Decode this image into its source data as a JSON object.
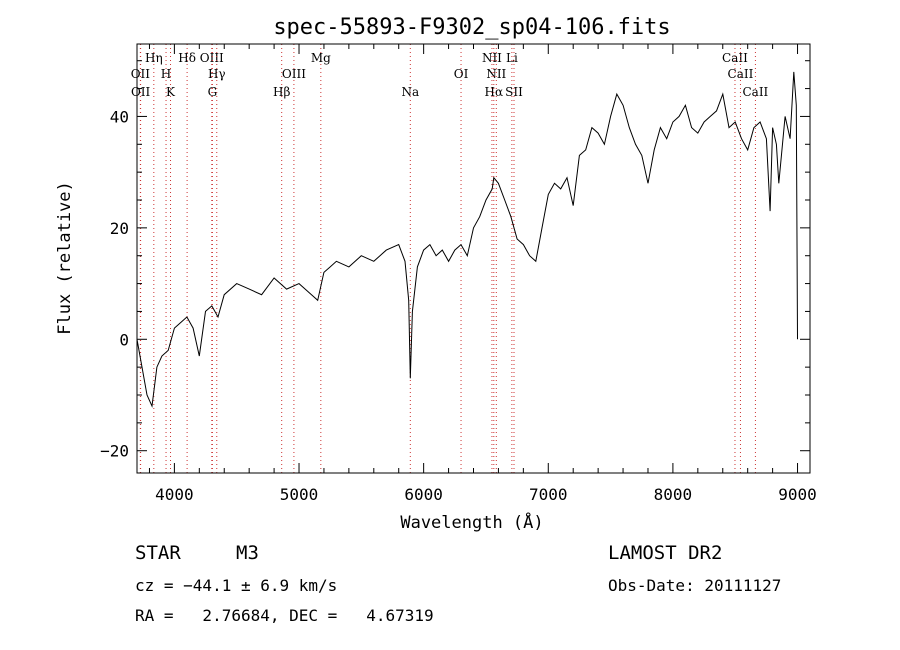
{
  "chart_data": {
    "type": "line",
    "title": "spec-55893-F9302_sp04-106.fits",
    "xlabel": "Wavelength (Å)",
    "ylabel": "Flux (relative)",
    "xlim": [
      3700,
      9100
    ],
    "ylim": [
      -24,
      53
    ],
    "xticks": [
      4000,
      5000,
      6000,
      7000,
      8000,
      9000
    ],
    "yticks": [
      -20,
      0,
      20,
      40
    ],
    "grid": false,
    "line_color": "#000000",
    "marker_color": "#cc3333",
    "series": [
      {
        "x": [
          3700,
          3740,
          3780,
          3820,
          3860,
          3900,
          3950,
          4000,
          4050,
          4100,
          4150,
          4200,
          4250,
          4300,
          4350,
          4400,
          4500,
          4600,
          4700,
          4800,
          4900,
          5000,
          5100,
          5150,
          5200,
          5250,
          5300,
          5400,
          5500,
          5600,
          5700,
          5800,
          5850,
          5880,
          5893,
          5910,
          5950,
          6000,
          6050,
          6100,
          6150,
          6200,
          6250,
          6300,
          6350,
          6400,
          6450,
          6500,
          6550,
          6563,
          6600,
          6650,
          6700,
          6750,
          6800,
          6850,
          6900,
          6950,
          7000,
          7050,
          7100,
          7150,
          7200,
          7250,
          7300,
          7350,
          7400,
          7450,
          7500,
          7550,
          7600,
          7650,
          7700,
          7750,
          7800,
          7850,
          7900,
          7950,
          8000,
          8050,
          8100,
          8150,
          8200,
          8250,
          8300,
          8350,
          8400,
          8450,
          8500,
          8550,
          8600,
          8650,
          8700,
          8750,
          8780,
          8800,
          8830,
          8850,
          8900,
          8940,
          8970,
          8990,
          9000
        ],
        "y": [
          0,
          -5,
          -10,
          -12,
          -5,
          -3,
          -2,
          2,
          3,
          4,
          2,
          -3,
          5,
          6,
          4,
          8,
          10,
          9,
          8,
          11,
          9,
          10,
          8,
          7,
          12,
          13,
          14,
          13,
          15,
          14,
          16,
          17,
          14,
          7,
          -7,
          5,
          13,
          16,
          17,
          15,
          16,
          14,
          16,
          17,
          15,
          20,
          22,
          25,
          27,
          29,
          28,
          25,
          22,
          18,
          17,
          15,
          14,
          20,
          26,
          28,
          27,
          29,
          24,
          33,
          34,
          38,
          37,
          35,
          40,
          44,
          42,
          38,
          35,
          33,
          28,
          34,
          38,
          36,
          39,
          40,
          42,
          38,
          37,
          39,
          40,
          41,
          44,
          38,
          39,
          36,
          34,
          38,
          39,
          36,
          23,
          38,
          35,
          28,
          40,
          36,
          48,
          42,
          0
        ]
      }
    ],
    "line_markers": [
      {
        "label": "OII",
        "x": 3727,
        "row": 2
      },
      {
        "label": "OII",
        "x": 3729,
        "row": 3
      },
      {
        "label": "Hη",
        "x": 3835,
        "row": 1
      },
      {
        "label": "H",
        "x": 3933,
        "row": 2
      },
      {
        "label": "K",
        "x": 3969,
        "row": 3
      },
      {
        "label": "Hδ",
        "x": 4102,
        "row": 1
      },
      {
        "label": "OIII",
        "x": 4300,
        "row": 1
      },
      {
        "label": "Hγ",
        "x": 4340,
        "row": 2
      },
      {
        "label": "G",
        "x": 4305,
        "row": 3
      },
      {
        "label": "Hβ",
        "x": 4861,
        "row": 3
      },
      {
        "label": "OIII",
        "x": 4959,
        "row": 2
      },
      {
        "label": "Mg",
        "x": 5175,
        "row": 1
      },
      {
        "label": "Na",
        "x": 5893,
        "row": 3
      },
      {
        "label": "OI",
        "x": 6300,
        "row": 2
      },
      {
        "label": "NII",
        "x": 6548,
        "row": 1
      },
      {
        "label": "NII",
        "x": 6583,
        "row": 2
      },
      {
        "label": "Hα",
        "x": 6563,
        "row": 3
      },
      {
        "label": "Li",
        "x": 6708,
        "row": 1
      },
      {
        "label": "SII",
        "x": 6725,
        "row": 3
      },
      {
        "label": "CaII",
        "x": 8498,
        "row": 1
      },
      {
        "label": "CaII",
        "x": 8542,
        "row": 2
      },
      {
        "label": "CaII",
        "x": 8662,
        "row": 3
      }
    ]
  },
  "info": {
    "obj_class": "STAR",
    "obj_subclass": "M3",
    "survey": "LAMOST DR2",
    "cz": "cz = −44.1 ± 6.9 km/s",
    "obs_date": "Obs-Date: 20111127",
    "radec": "RA =   2.76684, DEC =   4.67319"
  }
}
